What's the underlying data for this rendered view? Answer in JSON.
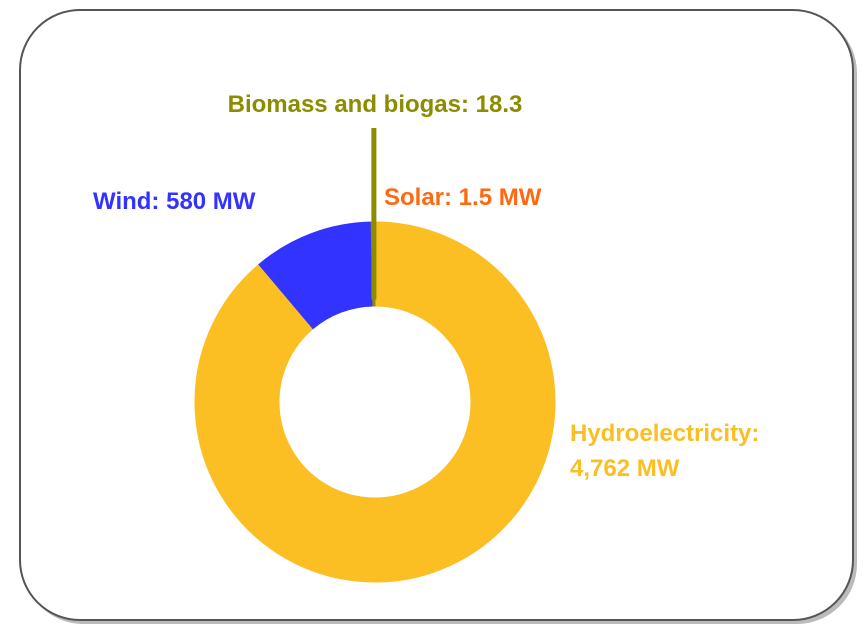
{
  "chart_data": {
    "type": "donut",
    "values": [
      1.5,
      4762,
      580,
      18.3
    ],
    "value_labels": [
      "Solar: 1.5 MW",
      "Hydroelectricity:\n4,762 MW",
      "Wind: 580 MW",
      "Biomass and biogas: 18.3"
    ],
    "colors": [
      "#ff6a10",
      "#fbbf24",
      "#3333ff",
      "#8c8c00"
    ]
  }
}
